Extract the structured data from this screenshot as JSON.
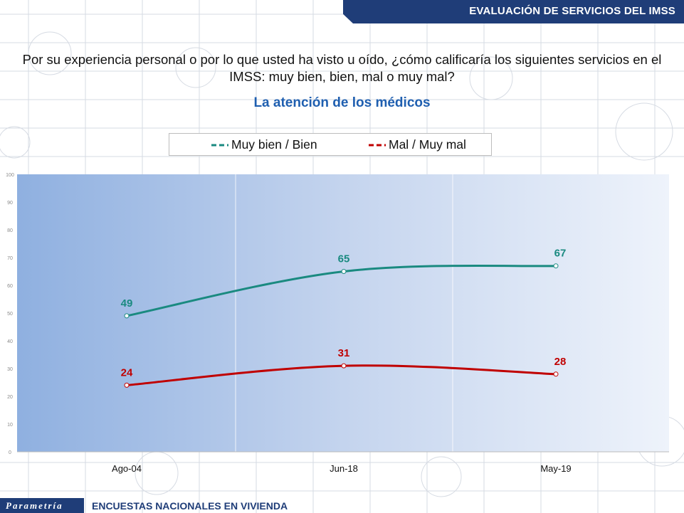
{
  "header": {
    "title": "EVALUACIÓN DE SERVICIOS DEL IMSS"
  },
  "question": "Por su experiencia personal o por lo que usted ha visto u oído, ¿cómo calificaría los siguientes servicios en el IMSS: muy bien, bien, mal o muy mal?",
  "footer": {
    "brand": "Parametría",
    "text": "ENCUESTAS NACIONALES  EN VIVIENDA"
  },
  "colors": {
    "header_bg": "#1f3d78",
    "subtitle": "#1f5fb0",
    "series_good": "#1a8a80",
    "series_bad": "#c00000"
  },
  "chart_data": {
    "type": "line",
    "title": "La atención de los médicos",
    "categories": [
      "Ago-04",
      "Jun-18",
      "May-19"
    ],
    "series": [
      {
        "name": "Muy bien / Bien",
        "values": [
          49,
          65,
          67
        ],
        "color": "#1a8a80"
      },
      {
        "name": "Mal / Muy mal",
        "values": [
          24,
          31,
          28
        ],
        "color": "#c00000"
      }
    ],
    "ylim": [
      0,
      100
    ],
    "yticks": [
      0,
      10,
      20,
      30,
      40,
      50,
      60,
      70,
      80,
      90,
      100
    ],
    "legend": "top",
    "grid": false
  }
}
